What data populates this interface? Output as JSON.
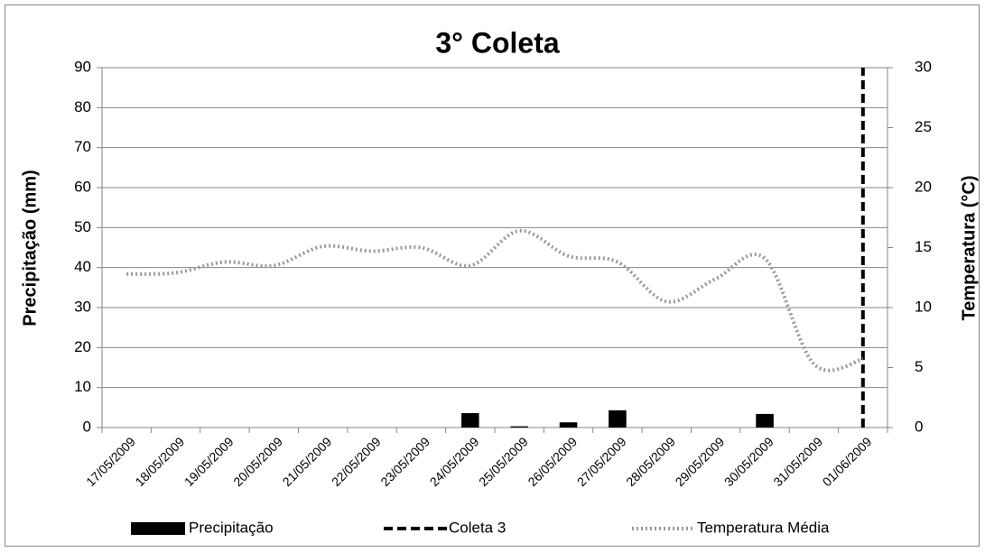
{
  "chart_data": {
    "type": "bar-line",
    "title": "3° Coleta",
    "y_label": "Precipitação (mm)",
    "y2_label": "Temperatura (°C)",
    "categories": [
      "17/05/2009",
      "18/05/2009",
      "19/05/2009",
      "20/05/2009",
      "21/05/2009",
      "22/05/2009",
      "23/05/2009",
      "24/05/2009",
      "25/05/2009",
      "26/05/2009",
      "27/05/2009",
      "28/05/2009",
      "29/05/2009",
      "30/05/2009",
      "31/05/2009",
      "01/06/2009"
    ],
    "series": [
      {
        "name": "Precipitação",
        "kind": "bar",
        "color": "#000000",
        "values": [
          0,
          0,
          0,
          0,
          0,
          0,
          0,
          3.6,
          0.3,
          1.3,
          4.3,
          0,
          0,
          3.4,
          0,
          0
        ]
      },
      {
        "name": "Coleta 3",
        "kind": "vline",
        "color": "#000000",
        "values": [
          null,
          null,
          null,
          null,
          null,
          null,
          null,
          null,
          null,
          null,
          null,
          null,
          null,
          null,
          null,
          90
        ]
      },
      {
        "name": "Temperatura Média",
        "kind": "line",
        "axis": "y2",
        "color": "#999999",
        "values": [
          12.8,
          12.9,
          13.8,
          13.5,
          15.1,
          14.7,
          15.0,
          13.5,
          16.4,
          14.3,
          13.8,
          10.5,
          12.4,
          14.1,
          5.3,
          5.7
        ]
      }
    ],
    "ylim": [
      0,
      90
    ],
    "yticks": [
      0,
      10,
      20,
      30,
      40,
      50,
      60,
      70,
      80,
      90
    ],
    "y2lim": [
      0,
      30
    ],
    "y2ticks": [
      0,
      5,
      10,
      15,
      20,
      25,
      30
    ],
    "grid": true,
    "legend": "bottom"
  }
}
